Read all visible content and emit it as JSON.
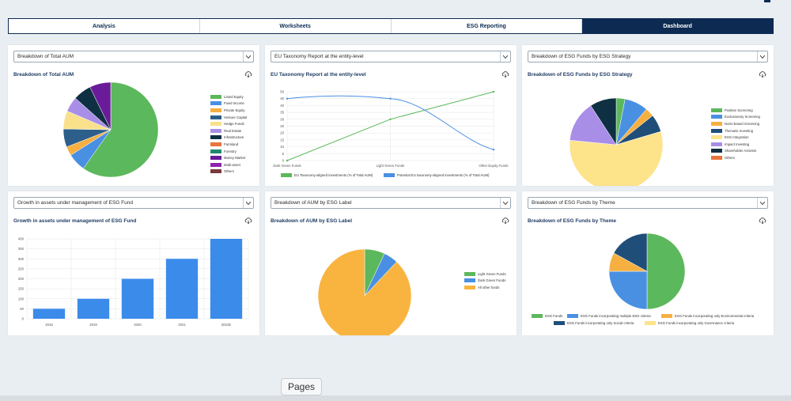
{
  "tabs": [
    {
      "label": "Analysis",
      "active": false
    },
    {
      "label": "Worksheets",
      "active": false
    },
    {
      "label": "ESG Reporting",
      "active": false
    },
    {
      "label": "Dashboard",
      "active": true
    }
  ],
  "cards": {
    "aum": {
      "select": "Breakdown of Total AUM",
      "title": "Breakdown of Total AUM",
      "legend": [
        {
          "label": "Listed Equity",
          "color": "#5cb85c"
        },
        {
          "label": "Fixed Income",
          "color": "#4a90e2"
        },
        {
          "label": "Private Equity",
          "color": "#f5b041"
        },
        {
          "label": "Venture Capital",
          "color": "#2c5f8a"
        },
        {
          "label": "Hedge Funds",
          "color": "#f9e08b"
        },
        {
          "label": "Real Estate",
          "color": "#a98ee8"
        },
        {
          "label": "Infrastructure",
          "color": "#0e3042"
        },
        {
          "label": "Farmland",
          "color": "#e8743b"
        },
        {
          "label": "Forestry",
          "color": "#1f8a6b"
        },
        {
          "label": "Money Market",
          "color": "#6a1b9a"
        },
        {
          "label": "Multi-asset",
          "color": "#8e24aa"
        },
        {
          "label": "Others",
          "color": "#7b3a3a"
        }
      ]
    },
    "eu": {
      "select": "EU Taxonomy Report at the entity-level",
      "title": "EU Taxonomy Report at the entity-level",
      "legend": [
        "EU Taxonomy-aligned investments (% of Total AUM)",
        "Potential EU taxonomy-aligned investments (% of Total AUM)"
      ]
    },
    "strategy": {
      "select": "Breakdown of ESG Funds by ESG Strategy",
      "title": "Breakdown of ESG Funds by ESG Strategy",
      "legend": [
        {
          "label": "Positive Screening",
          "color": "#5cb85c"
        },
        {
          "label": "Exclusionary Screening",
          "color": "#4a90e2"
        },
        {
          "label": "Norm-based Screening",
          "color": "#f5b041"
        },
        {
          "label": "Thematic Investing",
          "color": "#1f4e79"
        },
        {
          "label": "ESG Integration",
          "color": "#fde38a"
        },
        {
          "label": "Impact Investing",
          "color": "#a98ee8"
        },
        {
          "label": "Shareholder Activism",
          "color": "#0e3042"
        },
        {
          "label": "Others",
          "color": "#e8743b"
        }
      ]
    },
    "growth": {
      "select": "Growth in assets under management of ESG Fund",
      "title": "Growth in assets under management of ESG Fund"
    },
    "label": {
      "select": "Breakdown of AUM by ESG Label",
      "title": "Breakdown of AUM by ESG Label",
      "legend": [
        {
          "label": "Light Green Funds",
          "color": "#5cb85c"
        },
        {
          "label": "Dark Green Funds",
          "color": "#4a90e2"
        },
        {
          "label": "All other funds",
          "color": "#f9b440"
        }
      ]
    },
    "theme": {
      "select": "Breakdown of ESG Funds by Theme",
      "title": "Breakdown of ESG Funds by Theme",
      "legend": [
        {
          "label": "ESG Funds",
          "color": "#5cb85c"
        },
        {
          "label": "ESG Funds incorporating multiple ESG criteria",
          "color": "#4a90e2"
        },
        {
          "label": "ESG Funds incorporating only Environmental criteria",
          "color": "#f5b041"
        },
        {
          "label": "ESG Funds incorporating only Social criteria",
          "color": "#1f4e79"
        },
        {
          "label": "ESG Funds incorporating only Governance criteria",
          "color": "#fde38a"
        }
      ]
    }
  },
  "tooltip": "Pages",
  "chart_data": [
    {
      "type": "pie",
      "labels": [
        "Listed Equity",
        "Fixed Income",
        "Private Equity",
        "Venture Capital",
        "Hedge Funds",
        "Real Estate",
        "Infrastructure",
        "Farmland",
        "Forestry",
        "Money Market",
        "Multi-asset",
        "Others"
      ],
      "values": [
        58,
        6,
        3,
        6,
        6,
        5,
        6,
        0,
        0,
        7,
        0,
        0
      ],
      "colors": [
        "#5cb85c",
        "#4a90e2",
        "#f5b041",
        "#2c5f8a",
        "#f9e08b",
        "#a98ee8",
        "#0e3042",
        "#e8743b",
        "#1f8a6b",
        "#6a1b9a",
        "#8e24aa",
        "#7b3a3a"
      ],
      "title": "Breakdown of Total AUM"
    },
    {
      "type": "line",
      "categories": [
        "Dark Green Funds",
        "Light Green Funds",
        "Other Equity Funds"
      ],
      "series": [
        {
          "name": "EU Taxonomy-aligned investments (% of Total AUM)",
          "values": [
            0,
            30,
            50
          ],
          "color": "#5cb85c"
        },
        {
          "name": "Potential EU taxonomy-aligned investments (% of Total AUM)",
          "values": [
            45,
            45,
            8
          ],
          "color": "#4a90e2"
        }
      ],
      "ylim": [
        0,
        50
      ],
      "yticks": [
        0,
        5,
        10,
        15,
        20,
        25,
        30,
        35,
        40,
        45,
        50
      ],
      "title": "EU Taxonomy Report at the entity-level"
    },
    {
      "type": "pie",
      "labels": [
        "Positive Screening",
        "Exclusionary Screening",
        "Norm-based Screening",
        "Thematic Investing",
        "ESG Integration",
        "Impact Investing",
        "Shareholder Activism",
        "Others"
      ],
      "values": [
        3,
        8,
        3,
        6,
        55,
        14,
        9,
        0
      ],
      "colors": [
        "#5cb85c",
        "#4a90e2",
        "#f5b041",
        "#1f4e79",
        "#fde38a",
        "#a98ee8",
        "#0e3042",
        "#e8743b"
      ],
      "title": "Breakdown of ESG Funds by ESG Strategy"
    },
    {
      "type": "bar",
      "categories": [
        "2018",
        "2019",
        "2020",
        "2021",
        "2022E"
      ],
      "values": [
        50,
        100,
        200,
        300,
        400
      ],
      "color": "#3b8beb",
      "ylim": [
        0,
        400
      ],
      "yticks": [
        0,
        50,
        100,
        150,
        200,
        250,
        300,
        350,
        400
      ],
      "title": "Growth in assets under management of ESG Fund"
    },
    {
      "type": "pie",
      "labels": [
        "Light Green Funds",
        "Dark Green Funds",
        "All other funds"
      ],
      "values": [
        7,
        5,
        88
      ],
      "colors": [
        "#5cb85c",
        "#4a90e2",
        "#f9b440"
      ],
      "title": "Breakdown of AUM by ESG Label"
    },
    {
      "type": "pie",
      "labels": [
        "ESG Funds",
        "ESG Funds incorporating multiple ESG criteria",
        "ESG Funds incorporating only Environmental criteria",
        "ESG Funds incorporating only Social criteria",
        "ESG Funds incorporating only Governance criteria"
      ],
      "values": [
        50,
        25,
        8,
        17,
        0
      ],
      "colors": [
        "#5cb85c",
        "#4a90e2",
        "#f5b041",
        "#1f4e79",
        "#fde38a"
      ],
      "title": "Breakdown of ESG Funds by Theme"
    }
  ]
}
